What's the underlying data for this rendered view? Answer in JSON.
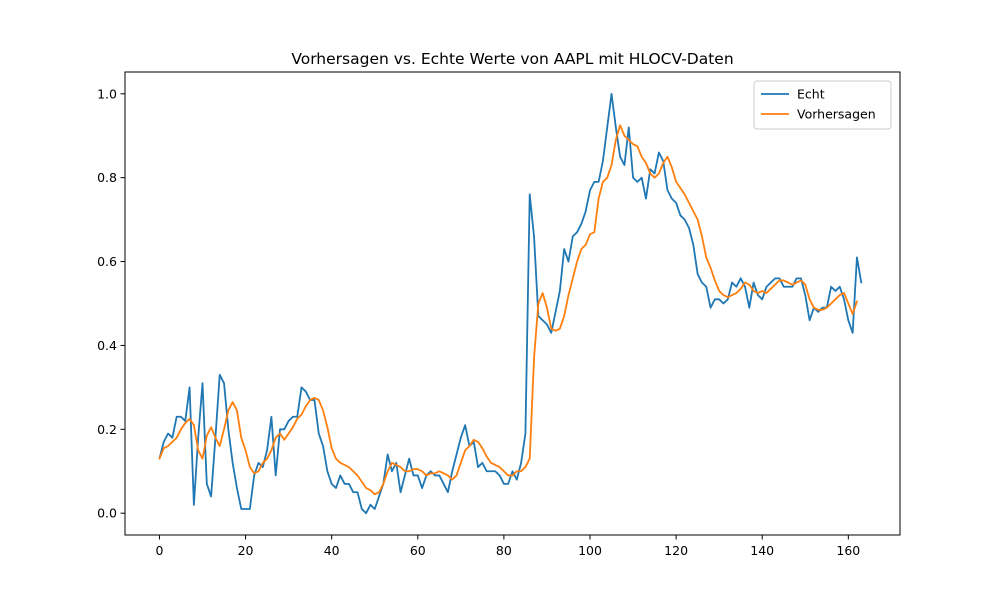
{
  "chart_data": {
    "type": "line",
    "title": "Vorhersagen vs. Echte Werte von AAPL mit HLOCV-Daten",
    "xlabel": "",
    "ylabel": "",
    "xlim": [
      -8,
      172
    ],
    "ylim": [
      -0.052,
      1.052
    ],
    "xticks": [
      0,
      20,
      40,
      60,
      80,
      100,
      120,
      140,
      160
    ],
    "yticks": [
      0.0,
      0.2,
      0.4,
      0.6,
      0.8,
      1.0
    ],
    "ytick_labels": [
      "0.0",
      "0.2",
      "0.4",
      "0.6",
      "0.8",
      "1.0"
    ],
    "grid": false,
    "legend_position": "top-right",
    "series": [
      {
        "name": "Echt",
        "color": "#1f77b4",
        "values": [
          0.13,
          0.17,
          0.19,
          0.18,
          0.23,
          0.23,
          0.22,
          0.3,
          0.02,
          0.18,
          0.31,
          0.07,
          0.04,
          0.18,
          0.33,
          0.31,
          0.2,
          0.12,
          0.06,
          0.01,
          0.01,
          0.01,
          0.09,
          0.12,
          0.11,
          0.15,
          0.23,
          0.09,
          0.2,
          0.2,
          0.22,
          0.23,
          0.23,
          0.3,
          0.29,
          0.27,
          0.27,
          0.19,
          0.16,
          0.1,
          0.07,
          0.06,
          0.09,
          0.07,
          0.07,
          0.05,
          0.05,
          0.01,
          0.0,
          0.02,
          0.01,
          0.04,
          0.07,
          0.14,
          0.1,
          0.12,
          0.05,
          0.09,
          0.13,
          0.09,
          0.09,
          0.06,
          0.09,
          0.1,
          0.09,
          0.09,
          0.07,
          0.05,
          0.1,
          0.14,
          0.18,
          0.21,
          0.16,
          0.17,
          0.11,
          0.12,
          0.1,
          0.1,
          0.1,
          0.09,
          0.07,
          0.07,
          0.1,
          0.08,
          0.12,
          0.19,
          0.76,
          0.66,
          0.47,
          0.46,
          0.45,
          0.43,
          0.48,
          0.53,
          0.63,
          0.6,
          0.66,
          0.67,
          0.69,
          0.72,
          0.77,
          0.79,
          0.79,
          0.84,
          0.92,
          1.0,
          0.92,
          0.85,
          0.83,
          0.92,
          0.8,
          0.79,
          0.8,
          0.75,
          0.82,
          0.81,
          0.86,
          0.84,
          0.77,
          0.75,
          0.74,
          0.71,
          0.7,
          0.68,
          0.64,
          0.57,
          0.55,
          0.54,
          0.49,
          0.51,
          0.51,
          0.5,
          0.51,
          0.55,
          0.54,
          0.56,
          0.54,
          0.49,
          0.55,
          0.52,
          0.51,
          0.54,
          0.55,
          0.56,
          0.56,
          0.54,
          0.54,
          0.54,
          0.56,
          0.56,
          0.52,
          0.46,
          0.49,
          0.48,
          0.49,
          0.49,
          0.54,
          0.53,
          0.54,
          0.51,
          0.46,
          0.43,
          0.61,
          0.55
        ]
      },
      {
        "name": "Vorhersagen",
        "color": "#ff7f0e",
        "values": [
          0.13,
          0.155,
          0.16,
          0.17,
          0.18,
          0.2,
          0.215,
          0.225,
          0.21,
          0.15,
          0.13,
          0.185,
          0.205,
          0.18,
          0.16,
          0.2,
          0.245,
          0.265,
          0.245,
          0.18,
          0.15,
          0.11,
          0.095,
          0.1,
          0.12,
          0.13,
          0.15,
          0.18,
          0.19,
          0.175,
          0.19,
          0.205,
          0.225,
          0.235,
          0.255,
          0.27,
          0.275,
          0.27,
          0.245,
          0.205,
          0.155,
          0.13,
          0.12,
          0.115,
          0.11,
          0.1,
          0.09,
          0.075,
          0.06,
          0.055,
          0.045,
          0.05,
          0.07,
          0.1,
          0.12,
          0.115,
          0.11,
          0.1,
          0.1,
          0.105,
          0.105,
          0.1,
          0.09,
          0.095,
          0.095,
          0.1,
          0.095,
          0.09,
          0.08,
          0.09,
          0.12,
          0.15,
          0.16,
          0.175,
          0.17,
          0.155,
          0.135,
          0.12,
          0.115,
          0.11,
          0.1,
          0.09,
          0.09,
          0.1,
          0.1,
          0.11,
          0.13,
          0.37,
          0.5,
          0.525,
          0.49,
          0.44,
          0.435,
          0.44,
          0.47,
          0.52,
          0.56,
          0.6,
          0.63,
          0.64,
          0.665,
          0.67,
          0.75,
          0.79,
          0.8,
          0.83,
          0.89,
          0.925,
          0.9,
          0.89,
          0.88,
          0.875,
          0.85,
          0.835,
          0.81,
          0.8,
          0.81,
          0.835,
          0.85,
          0.825,
          0.79,
          0.775,
          0.76,
          0.74,
          0.72,
          0.7,
          0.66,
          0.61,
          0.585,
          0.555,
          0.53,
          0.52,
          0.515,
          0.52,
          0.525,
          0.535,
          0.55,
          0.545,
          0.53,
          0.525,
          0.53,
          0.525,
          0.535,
          0.545,
          0.555,
          0.555,
          0.55,
          0.545,
          0.55,
          0.555,
          0.545,
          0.51,
          0.49,
          0.485,
          0.485,
          0.49,
          0.5,
          0.51,
          0.52,
          0.525,
          0.5,
          0.475,
          0.505
        ]
      }
    ]
  }
}
